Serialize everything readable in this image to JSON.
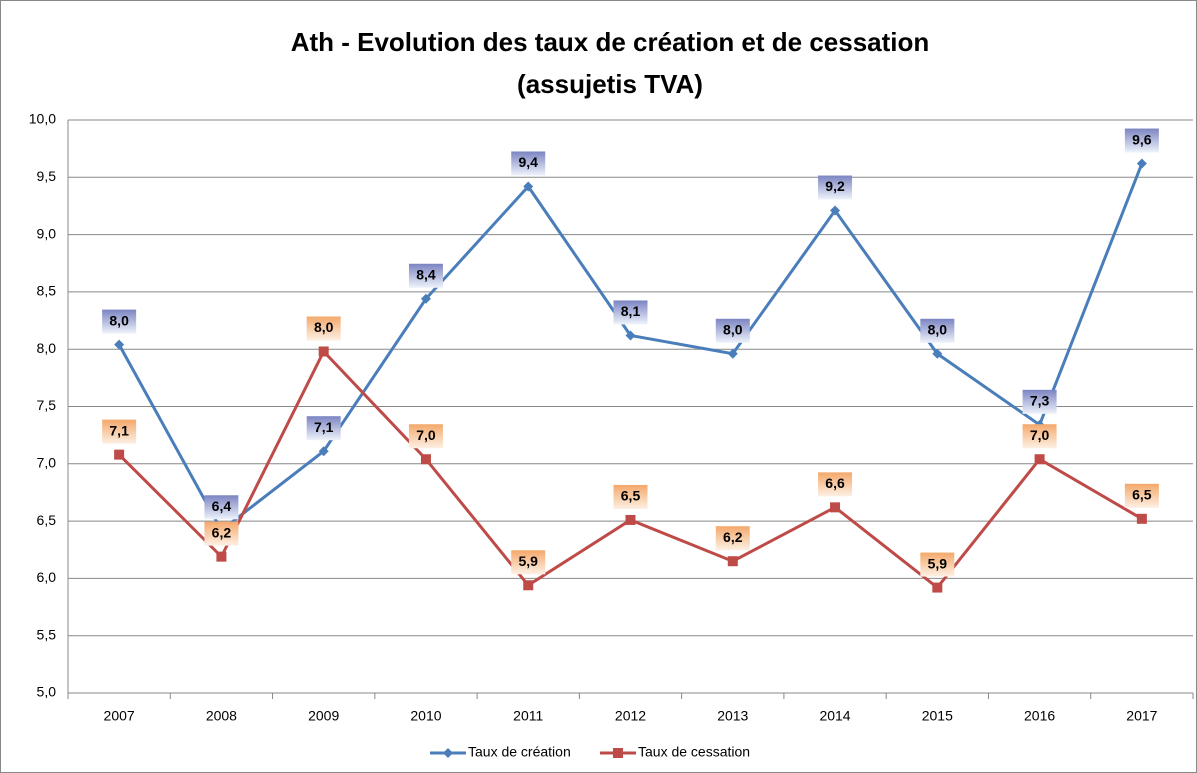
{
  "chart_data": {
    "type": "line",
    "title": "Ath - Evolution des taux de création et de cessation",
    "subtitle": "(assujetis TVA)",
    "categories": [
      "2007",
      "2008",
      "2009",
      "2010",
      "2011",
      "2012",
      "2013",
      "2014",
      "2015",
      "2016",
      "2017"
    ],
    "series": [
      {
        "name": "Taux de création",
        "color": "#4a7ebb",
        "marker": "diamond",
        "values": [
          8.04,
          6.42,
          7.11,
          8.44,
          9.42,
          8.12,
          7.96,
          9.21,
          7.96,
          7.34,
          9.62
        ],
        "value_labels": [
          "8,0",
          "6,4",
          "7,1",
          "8,4",
          "9,4",
          "8,1",
          "8,0",
          "9,2",
          "8,0",
          "7,3",
          "9,6"
        ]
      },
      {
        "name": "Taux de cessation",
        "color": "#be4b48",
        "marker": "square",
        "values": [
          7.08,
          6.19,
          7.98,
          7.04,
          5.94,
          6.51,
          6.15,
          6.62,
          5.92,
          7.04,
          6.52
        ],
        "value_labels": [
          "7,1",
          "6,2",
          "8,0",
          "7,0",
          "5,9",
          "6,5",
          "6,2",
          "6,6",
          "5,9",
          "7,0",
          "6,5"
        ]
      }
    ],
    "ylim": [
      5,
      10
    ],
    "yticks": [
      {
        "value": 5,
        "label": "5,0"
      },
      {
        "value": 5.5,
        "label": "5,5"
      },
      {
        "value": 6,
        "label": "6,0"
      },
      {
        "value": 6.5,
        "label": "6,5"
      },
      {
        "value": 7,
        "label": "7,0"
      },
      {
        "value": 7.5,
        "label": "7,5"
      },
      {
        "value": 8,
        "label": "8,0"
      },
      {
        "value": 8.5,
        "label": "8,5"
      },
      {
        "value": 9,
        "label": "9,0"
      },
      {
        "value": 9.5,
        "label": "9,5"
      },
      {
        "value": 10,
        "label": "10,0"
      }
    ],
    "grid": true,
    "legend": "bottom"
  }
}
